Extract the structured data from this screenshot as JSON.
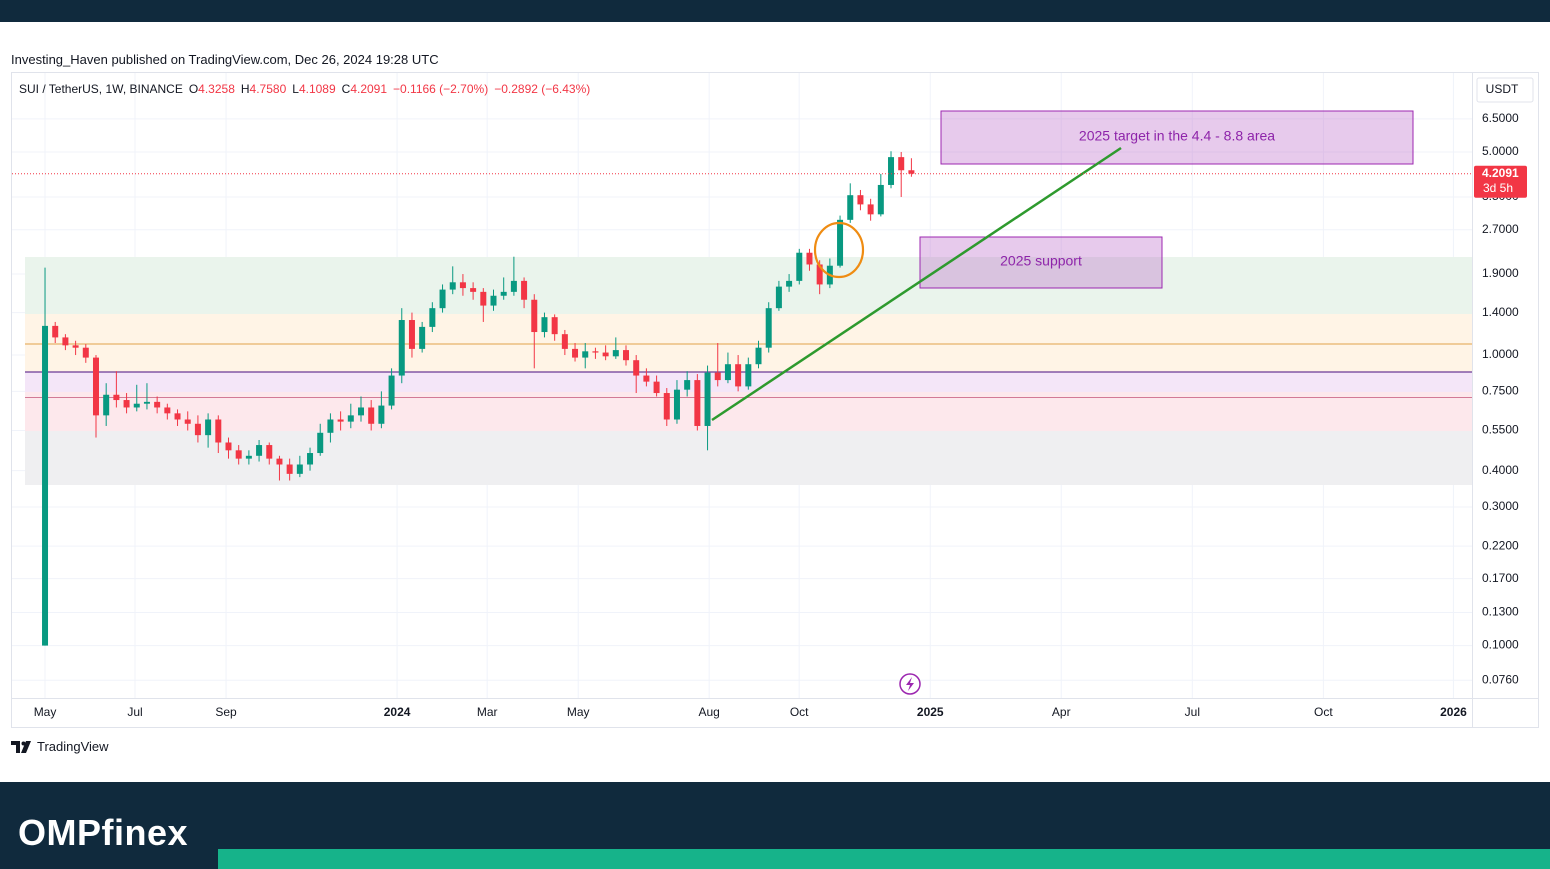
{
  "header": {
    "published": "Investing_Haven published on TradingView.com, Dec 26, 2024 19:28 UTC"
  },
  "legend": {
    "symbol": "SUI / TetherUS, 1W, BINANCE",
    "items": [
      {
        "label": "O",
        "value": "4.3258"
      },
      {
        "label": "H",
        "value": "4.7580"
      },
      {
        "label": "L",
        "value": "4.1089"
      },
      {
        "label": "C",
        "value": "4.2091"
      }
    ],
    "changes": [
      "−0.1166 (−2.70%)",
      "−0.2892 (−6.43%)"
    ]
  },
  "chart_data": {
    "type": "candlestick",
    "log_scale": true,
    "grid": true,
    "currency": "USDT",
    "countdown": "3d 5h",
    "up_color": "#089981",
    "down_color": "#f23645",
    "open": [
      0.1,
      1.26,
      1.15,
      1.08,
      1.06,
      0.98,
      0.62,
      0.73,
      0.7,
      0.66,
      0.68,
      0.69,
      0.66,
      0.63,
      0.6,
      0.58,
      0.53,
      0.6,
      0.5,
      0.47,
      0.44,
      0.45,
      0.49,
      0.44,
      0.42,
      0.39,
      0.42,
      0.46,
      0.54,
      0.6,
      0.59,
      0.62,
      0.66,
      0.58,
      0.67,
      0.85,
      1.32,
      1.05,
      1.25,
      1.45,
      1.68,
      1.78,
      1.7,
      1.65,
      1.48,
      1.6,
      1.65,
      1.8,
      1.55,
      1.2,
      1.35,
      1.18,
      1.05,
      0.98,
      1.03,
      1.02,
      0.99,
      1.04,
      0.96,
      0.85,
      0.81,
      0.74,
      0.6,
      0.76,
      0.82,
      0.57,
      0.87,
      0.82,
      0.93,
      0.78,
      0.93,
      1.06,
      1.45,
      1.72,
      1.8,
      2.25,
      2.05,
      1.75,
      2.03,
      2.92,
      3.55,
      3.3,
      3.05,
      3.85,
      4.8,
      4.3258
    ],
    "high": [
      2.0,
      1.3,
      1.18,
      1.12,
      1.09,
      1.0,
      0.8,
      0.88,
      0.74,
      0.79,
      0.8,
      0.72,
      0.68,
      0.65,
      0.64,
      0.62,
      0.63,
      0.62,
      0.52,
      0.49,
      0.47,
      0.51,
      0.5,
      0.45,
      0.44,
      0.45,
      0.48,
      0.58,
      0.63,
      0.64,
      0.68,
      0.72,
      0.7,
      0.75,
      0.9,
      1.45,
      1.4,
      1.3,
      1.52,
      1.75,
      2.02,
      1.9,
      1.78,
      1.7,
      1.68,
      1.85,
      2.18,
      1.85,
      1.62,
      1.4,
      1.38,
      1.22,
      1.1,
      1.1,
      1.06,
      1.08,
      1.15,
      1.08,
      1.0,
      0.9,
      0.85,
      0.77,
      0.82,
      0.88,
      0.86,
      0.92,
      1.1,
      1.02,
      1.0,
      0.98,
      1.12,
      1.52,
      1.8,
      1.9,
      2.32,
      2.32,
      2.12,
      2.15,
      3.02,
      3.9,
      3.7,
      3.45,
      4.2,
      5.03,
      5.0,
      4.758
    ],
    "low": [
      0.1,
      1.1,
      1.04,
      1.0,
      0.94,
      0.52,
      0.57,
      0.66,
      0.63,
      0.64,
      0.65,
      0.63,
      0.6,
      0.57,
      0.55,
      0.5,
      0.48,
      0.46,
      0.44,
      0.42,
      0.42,
      0.43,
      0.42,
      0.37,
      0.37,
      0.38,
      0.4,
      0.45,
      0.5,
      0.55,
      0.56,
      0.59,
      0.55,
      0.56,
      0.65,
      0.8,
      0.98,
      1.02,
      1.2,
      1.4,
      1.62,
      1.6,
      1.55,
      1.3,
      1.42,
      1.55,
      1.6,
      1.45,
      0.9,
      1.15,
      1.12,
      1.0,
      0.95,
      0.9,
      0.97,
      0.96,
      0.97,
      0.92,
      0.74,
      0.78,
      0.72,
      0.57,
      0.58,
      0.72,
      0.55,
      0.47,
      0.78,
      0.8,
      0.75,
      0.76,
      0.9,
      1.02,
      1.42,
      1.65,
      1.75,
      1.95,
      1.62,
      1.7,
      2.0,
      2.85,
      3.15,
      2.9,
      3.0,
      3.75,
      3.5,
      4.1089
    ],
    "close": [
      1.26,
      1.15,
      1.08,
      1.06,
      0.98,
      0.62,
      0.73,
      0.7,
      0.66,
      0.68,
      0.69,
      0.66,
      0.63,
      0.6,
      0.58,
      0.53,
      0.6,
      0.5,
      0.47,
      0.44,
      0.45,
      0.49,
      0.44,
      0.42,
      0.39,
      0.42,
      0.46,
      0.54,
      0.6,
      0.59,
      0.62,
      0.66,
      0.58,
      0.67,
      0.85,
      1.32,
      1.05,
      1.25,
      1.45,
      1.68,
      1.78,
      1.7,
      1.65,
      1.48,
      1.6,
      1.65,
      1.8,
      1.55,
      1.2,
      1.35,
      1.18,
      1.05,
      0.98,
      1.03,
      1.02,
      0.99,
      1.04,
      0.96,
      0.85,
      0.81,
      0.74,
      0.6,
      0.76,
      0.82,
      0.57,
      0.87,
      0.82,
      0.93,
      0.78,
      0.93,
      1.06,
      1.45,
      1.72,
      1.8,
      2.25,
      2.05,
      1.75,
      2.03,
      2.92,
      3.55,
      3.3,
      3.05,
      3.85,
      4.8,
      4.3258,
      4.2091
    ],
    "xlim": [
      -3.24,
      140.0
    ],
    "xticks": [
      {
        "value": 0,
        "label": "May"
      },
      {
        "value": 8.83,
        "label": "Jul"
      },
      {
        "value": 17.76,
        "label": "Sep"
      },
      {
        "value": 34.54,
        "label": "2024"
      },
      {
        "value": 43.38,
        "label": "Mar"
      },
      {
        "value": 52.31,
        "label": "May"
      },
      {
        "value": 65.16,
        "label": "Aug"
      },
      {
        "value": 73.99,
        "label": "Oct"
      },
      {
        "value": 86.85,
        "label": "2025"
      },
      {
        "value": 99.7,
        "label": "Apr"
      },
      {
        "value": 112.56,
        "label": "Jul"
      },
      {
        "value": 125.42,
        "label": "Oct"
      },
      {
        "value": 138.18,
        "label": "2026"
      }
    ],
    "ylim": [
      0.066,
      9.35
    ],
    "yticks": [
      {
        "value": 6.5,
        "label": "6.5000"
      },
      {
        "value": 5.0,
        "label": "5.0000"
      },
      {
        "value": 3.5,
        "label": "3.5000"
      },
      {
        "value": 2.7,
        "label": "2.7000"
      },
      {
        "value": 1.9,
        "label": "1.9000"
      },
      {
        "value": 1.4,
        "label": "1.4000"
      },
      {
        "value": 1.0,
        "label": "1.0000"
      },
      {
        "value": 0.75,
        "label": "0.7500"
      },
      {
        "value": 0.55,
        "label": "0.5500"
      },
      {
        "value": 0.4,
        "label": "0.4000"
      },
      {
        "value": 0.3,
        "label": "0.3000"
      },
      {
        "value": 0.22,
        "label": "0.2200"
      },
      {
        "value": 0.17,
        "label": "0.1700"
      },
      {
        "value": 0.13,
        "label": "0.1300"
      },
      {
        "value": 0.1,
        "label": "0.1000"
      },
      {
        "value": 0.076,
        "label": "0.0760"
      }
    ],
    "annotations": [
      "2025 target in the 4.4 - 8.8 area",
      "2025 support"
    ]
  },
  "footer": {
    "platform": "TradingView",
    "brand": "OMPfinex"
  }
}
